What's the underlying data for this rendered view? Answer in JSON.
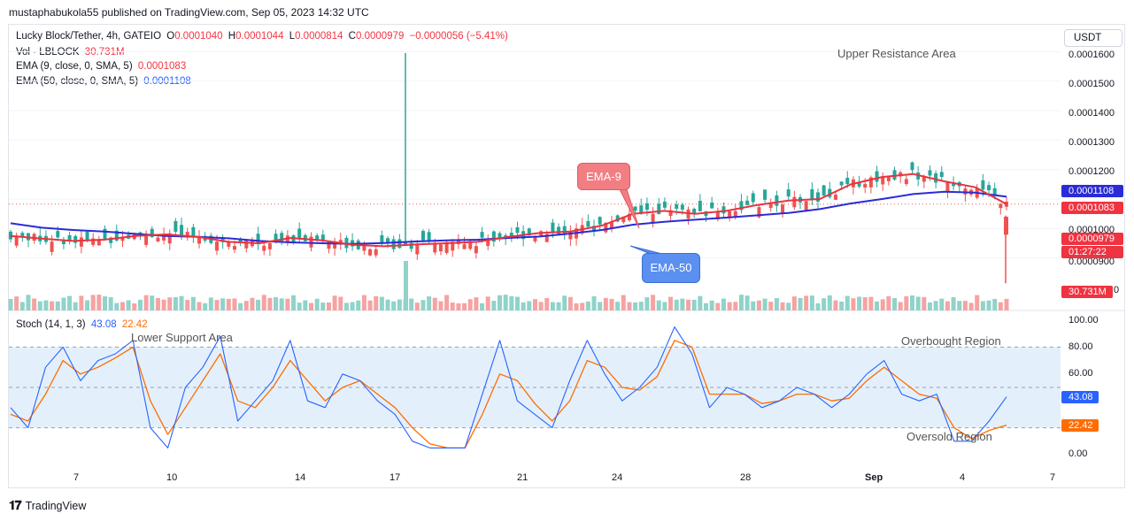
{
  "publish_line": "mustaphabukola55 published on TradingView.com, Sep 05, 2023 14:32 UTC",
  "currency": "USDT",
  "legend": {
    "symbol": "Lucky Block/Tether, 4h, GATEIO",
    "o_label": "O",
    "o_value": "0.0001040",
    "h_label": "H",
    "h_value": "0.0001044",
    "l_label": "L",
    "l_value": "0.0000814",
    "c_label": "C",
    "c_value": "0.0000979",
    "change": "−0.0000056 (−5.41%)",
    "vol_label": "Vol · LBLOCK",
    "vol_value": "30.731M",
    "ema9_label": "EMA (9, close, 0, SMA, 5)",
    "ema9_value": "0.0001083",
    "ema50_label": "EMA (50, close, 0, SMA, 5)",
    "ema50_value": "0.0001108",
    "stoch_label": "Stoch (14, 1, 3)",
    "stoch_k": "43.08",
    "stoch_d": "22.42"
  },
  "price_axis": [
    "0.0001600",
    "0.0001500",
    "0.0001400",
    "0.0001300",
    "0.0001200",
    "0.0001000",
    "0.0000900",
    "0"
  ],
  "stoch_axis": [
    "100.00",
    "80.00",
    "60.00",
    "0.00"
  ],
  "price_tags": {
    "ema50": "0.0001108",
    "ema9": "0.0001083",
    "last": "0.0000979",
    "countdown": "01:27:22",
    "volume": "30.731M",
    "stoch_k": "43.08",
    "stoch_d": "22.42"
  },
  "x_axis": [
    "7",
    "10",
    "14",
    "17",
    "21",
    "24",
    "28",
    "Sep",
    "4",
    "7"
  ],
  "annotations": {
    "upper": "Upper Resistance Area",
    "lower": "Lower Support Area",
    "overbought": "Overbought Region",
    "oversold": "Oversold Region",
    "ema9_callout": "EMA-9",
    "ema50_callout": "EMA-50"
  },
  "brand": "TradingView",
  "colors": {
    "up": "#26a69a",
    "down": "#ef5350",
    "ema9": "#e8333f",
    "ema50": "#2b2bd6",
    "stoch_k": "#2962ff",
    "stoch_d": "#ff6d00",
    "band": "#e3f0fc",
    "callout_red": "#f28080",
    "callout_blue": "#5b8ff0"
  },
  "chart_data": {
    "type": "line",
    "title": "Lucky Block/Tether, 4h, GATEIO",
    "price_ylim": [
      8e-05,
      0.00016
    ],
    "stoch_ylim": [
      0,
      100
    ],
    "series": [
      {
        "name": "EMA (9, close, 0, SMA, 5)",
        "values": [
          9.75e-05,
          9.66e-05,
          9.58e-05,
          9.62e-05,
          9.75e-05,
          9.8e-05,
          9.72e-05,
          9.55e-05,
          9.5e-05,
          9.68e-05,
          9.6e-05,
          9.45e-05,
          9.4e-05,
          9.46e-05,
          9.5e-05,
          9.55e-05,
          9.72e-05,
          9.85e-05,
          9.9e-05,
          0.000101,
          0.000105,
          0.000106,
          0.000105,
          0.000106,
          0.000108,
          0.0001095,
          0.00011,
          0.000115,
          0.0001175,
          0.0001185,
          0.000116,
          0.000114,
          0.0001083
        ]
      },
      {
        "name": "EMA (50, close, 0, SMA, 5)",
        "values": [
          0.0001018,
          0.0001003,
          9.95e-05,
          9.9e-05,
          9.82e-05,
          9.75e-05,
          9.72e-05,
          9.67e-05,
          9.58e-05,
          9.53e-05,
          9.5e-05,
          9.48e-05,
          9.51e-05,
          9.56e-05,
          9.6e-05,
          9.62e-05,
          9.68e-05,
          9.73e-05,
          9.83e-05,
          9.95e-05,
          0.0001013,
          0.0001023,
          0.000103,
          0.0001037,
          0.0001045,
          0.0001053,
          0.0001066,
          0.0001085,
          0.00011,
          0.0001117,
          0.0001125,
          0.0001122,
          0.0001108
        ]
      },
      {
        "name": "Stoch %K",
        "values": [
          35,
          20,
          65,
          80,
          55,
          70,
          75,
          85,
          20,
          5,
          50,
          65,
          88,
          25,
          40,
          55,
          85,
          40,
          35,
          60,
          55,
          40,
          30,
          10,
          5,
          5,
          5,
          45,
          85,
          40,
          30,
          20,
          55,
          85,
          60,
          40,
          50,
          65,
          95,
          75,
          35,
          50,
          45,
          35,
          40,
          50,
          45,
          35,
          45,
          60,
          70,
          45,
          40,
          45,
          10,
          10,
          25,
          43
        ]
      },
      {
        "name": "Stoch %D",
        "values": [
          30,
          25,
          45,
          70,
          60,
          65,
          72,
          80,
          40,
          15,
          35,
          55,
          75,
          40,
          35,
          50,
          70,
          55,
          40,
          50,
          55,
          45,
          35,
          20,
          8,
          5,
          5,
          30,
          60,
          55,
          38,
          25,
          40,
          70,
          65,
          50,
          48,
          58,
          85,
          80,
          45,
          45,
          45,
          38,
          40,
          45,
          45,
          40,
          42,
          55,
          65,
          55,
          45,
          42,
          20,
          12,
          18,
          22
        ]
      }
    ],
    "x_ticks": [
      "7",
      "10",
      "14",
      "17",
      "21",
      "24",
      "28",
      "Sep",
      "4",
      "7"
    ],
    "legend": "top-left"
  }
}
